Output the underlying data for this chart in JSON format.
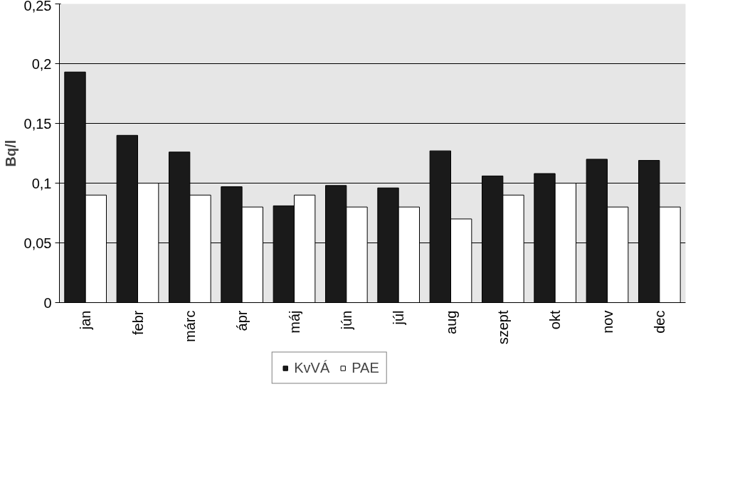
{
  "chart_data": {
    "type": "bar",
    "ylabel": "Bq/l",
    "categories": [
      "jan",
      "febr",
      "márc",
      "ápr",
      "máj",
      "jún",
      "júl",
      "aug",
      "szept",
      "okt",
      "nov",
      "dec"
    ],
    "series": [
      {
        "name": "KvVÁ",
        "color": "#1a1a1a",
        "values": [
          0.193,
          0.14,
          0.126,
          0.097,
          0.081,
          0.098,
          0.096,
          0.127,
          0.106,
          0.108,
          0.12,
          0.119
        ]
      },
      {
        "name": "PAE",
        "color": "#ffffff",
        "values": [
          0.09,
          0.1,
          0.09,
          0.08,
          0.09,
          0.08,
          0.08,
          0.07,
          0.09,
          0.1,
          0.08,
          0.08
        ]
      }
    ],
    "ylim": [
      0,
      0.25
    ],
    "yticks": [
      {
        "value": 0,
        "label": "0"
      },
      {
        "value": 0.05,
        "label": "0,05"
      },
      {
        "value": 0.1,
        "label": "0,1"
      },
      {
        "value": 0.15,
        "label": "0,15"
      },
      {
        "value": 0.2,
        "label": "0,2"
      },
      {
        "value": 0.25,
        "label": "0,25"
      }
    ],
    "grid": "y",
    "legend": "bottom"
  }
}
